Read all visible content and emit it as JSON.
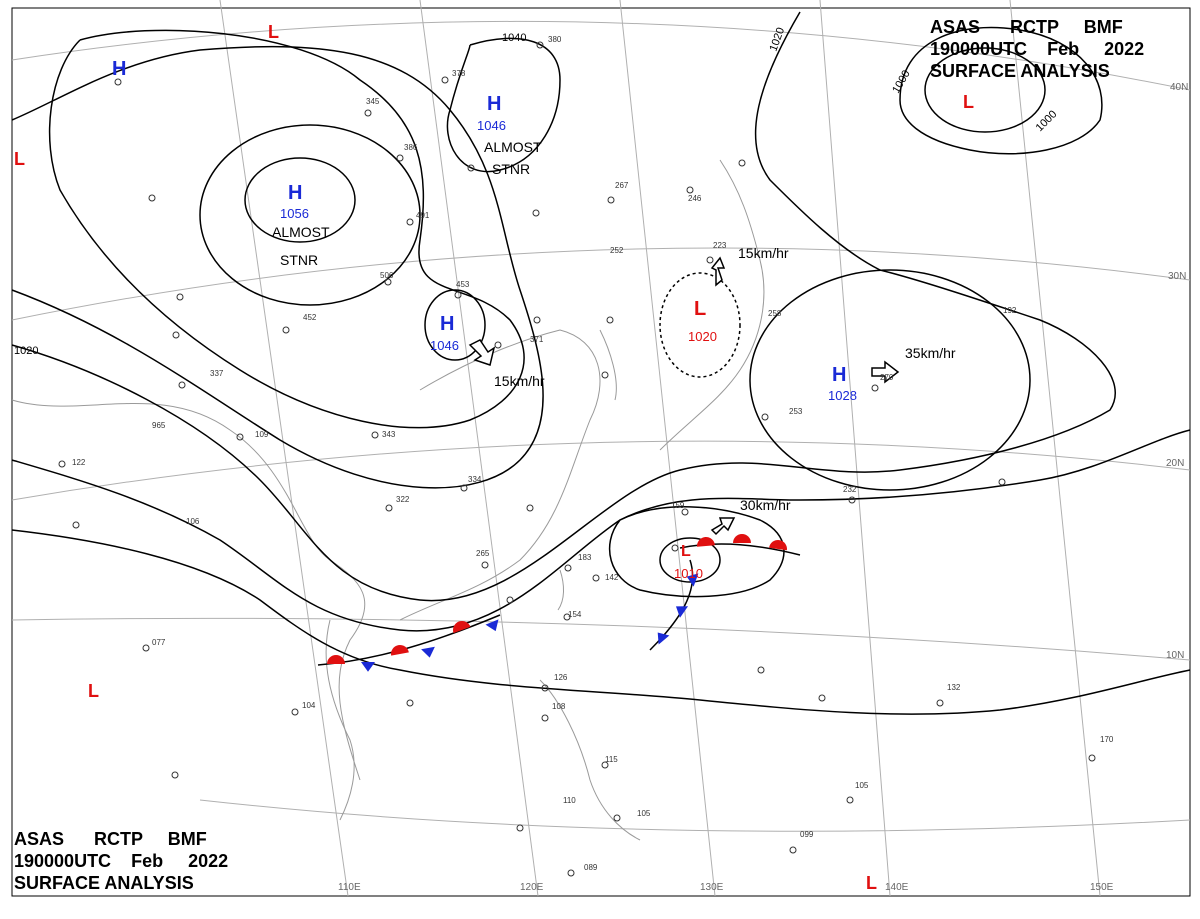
{
  "header": {
    "line1": [
      "ASAS",
      "RCTP",
      "BMF"
    ],
    "line2": [
      "190000UTC",
      "Feb",
      "2022"
    ],
    "line3": "SURFACE ANALYSIS"
  },
  "pressure_centers": [
    {
      "type": "H",
      "value": "1056",
      "note": "ALMOST STNR",
      "color": "#1a2ad6"
    },
    {
      "type": "H",
      "value": "1046",
      "note": "ALMOST STNR",
      "color": "#1a2ad6"
    },
    {
      "type": "H",
      "value": "1046",
      "motion": "15km/hr",
      "color": "#1a2ad6"
    },
    {
      "type": "H",
      "value": "1028",
      "motion": "35km/hr",
      "color": "#1a2ad6"
    },
    {
      "type": "H",
      "value": "",
      "color": "#1a2ad6"
    },
    {
      "type": "L",
      "value": "1020",
      "motion": "15km/hr",
      "color": "#e01010"
    },
    {
      "type": "L",
      "value": "1010",
      "motion": "30km/hr",
      "color": "#e01010"
    },
    {
      "type": "L",
      "value": "",
      "color": "#e01010"
    }
  ],
  "isobar_labels": [
    "1040",
    "1020",
    "1020",
    "1000",
    "1000"
  ],
  "note_text": {
    "almost": "ALMOST",
    "stnr": "STNR"
  },
  "grid_labels": {
    "lat": [
      "40N",
      "30N",
      "20N",
      "10N"
    ],
    "lon": [
      "110E",
      "120E",
      "130E",
      "140E",
      "150E"
    ]
  },
  "fronts": {
    "warm_color": "#e01010",
    "cold_color": "#1a2ad6"
  },
  "station_samples": [
    "380",
    "378",
    "345",
    "386",
    "491",
    "506",
    "452",
    "453",
    "371",
    "337",
    "343",
    "334",
    "322",
    "265",
    "252",
    "267",
    "246",
    "223",
    "258",
    "253",
    "159",
    "183",
    "154",
    "142",
    "122",
    "106",
    "077",
    "104",
    "126",
    "108",
    "115",
    "110",
    "105",
    "089",
    "099",
    "132",
    "105",
    "965",
    "109",
    "170",
    "192",
    "270",
    "232"
  ],
  "colors": {
    "isobar": "#000000",
    "coast": "#9a9a9a",
    "grid": "#b0b0b0",
    "high": "#1a2ad6",
    "low": "#e01010"
  }
}
